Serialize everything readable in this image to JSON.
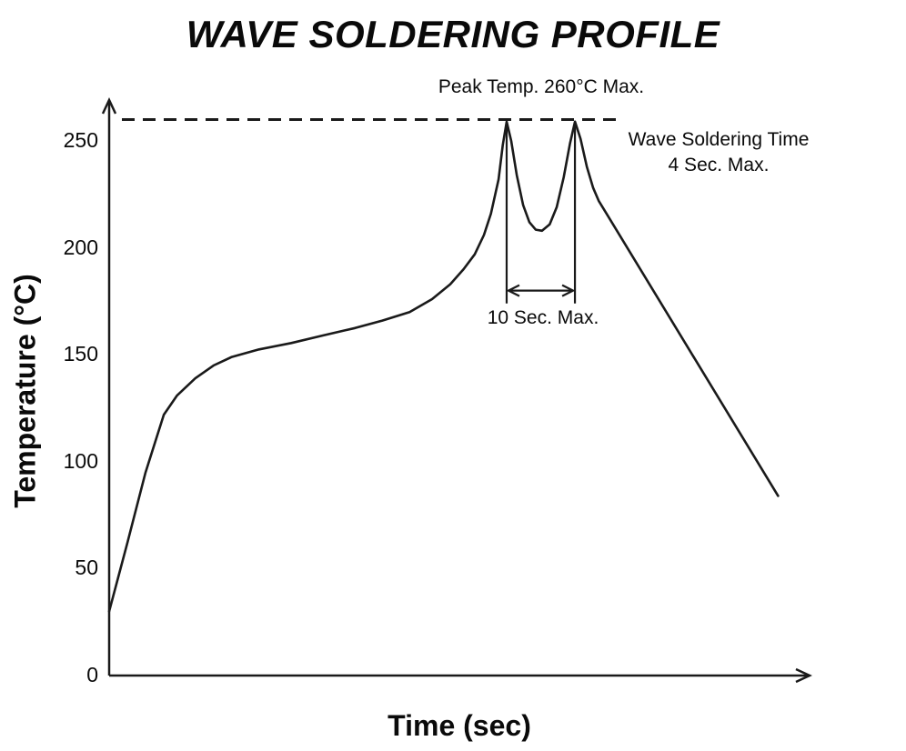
{
  "chart_data": {
    "type": "line",
    "title": "WAVE SOLDERING PROFILE",
    "xlabel": "Time (sec)",
    "ylabel": "Temperature (°C)",
    "xlim": [
      0,
      100
    ],
    "ylim": [
      0,
      280
    ],
    "y_ticks": [
      0,
      50,
      100,
      150,
      200,
      250
    ],
    "x_tick_labels_shown": false,
    "grid": false,
    "line_color": "#1a1a1a",
    "series": [
      {
        "name": "temperature-profile",
        "points": [
          [
            0,
            30
          ],
          [
            2.6,
            62
          ],
          [
            5.2,
            95
          ],
          [
            7.8,
            122
          ],
          [
            9.7,
            131
          ],
          [
            12.3,
            139
          ],
          [
            14.9,
            145
          ],
          [
            17.5,
            149
          ],
          [
            21.4,
            152.5
          ],
          [
            26,
            155.5
          ],
          [
            30.5,
            159
          ],
          [
            35.1,
            162.5
          ],
          [
            39,
            166
          ],
          [
            42.9,
            170
          ],
          [
            46.1,
            176
          ],
          [
            48.7,
            183
          ],
          [
            50.6,
            190
          ],
          [
            52.2,
            197
          ],
          [
            53.5,
            206
          ],
          [
            54.5,
            216
          ],
          [
            55.6,
            232
          ],
          [
            56.2,
            248
          ],
          [
            56.75,
            259
          ],
          [
            57.4,
            250
          ],
          [
            58.2,
            234
          ],
          [
            59.1,
            220
          ],
          [
            60,
            212
          ],
          [
            60.9,
            208.5
          ],
          [
            61.8,
            208
          ],
          [
            62.9,
            211
          ],
          [
            63.9,
            219
          ],
          [
            64.9,
            233
          ],
          [
            65.8,
            249
          ],
          [
            66.5,
            259
          ],
          [
            67.3,
            251
          ],
          [
            68.2,
            238
          ],
          [
            69.1,
            228
          ],
          [
            69.9,
            222
          ],
          [
            71.2,
            215
          ],
          [
            95.5,
            84
          ]
        ]
      }
    ],
    "reference_line": {
      "temp": 260,
      "style": "dashed"
    },
    "annotations": {
      "peak_temp_label": "Peak Temp. 260°C Max.",
      "wave_soldering_time_line1": "Wave Soldering Time",
      "wave_soldering_time_line2": "4 Sec. Max.",
      "dwell_label": "10 Sec. Max.",
      "dwell_span": {
        "t_start": 56.75,
        "t_end": 66.5,
        "arrow_temp": 180,
        "drop_to_temp": 174,
        "peak_top_temp": 257
      }
    }
  }
}
